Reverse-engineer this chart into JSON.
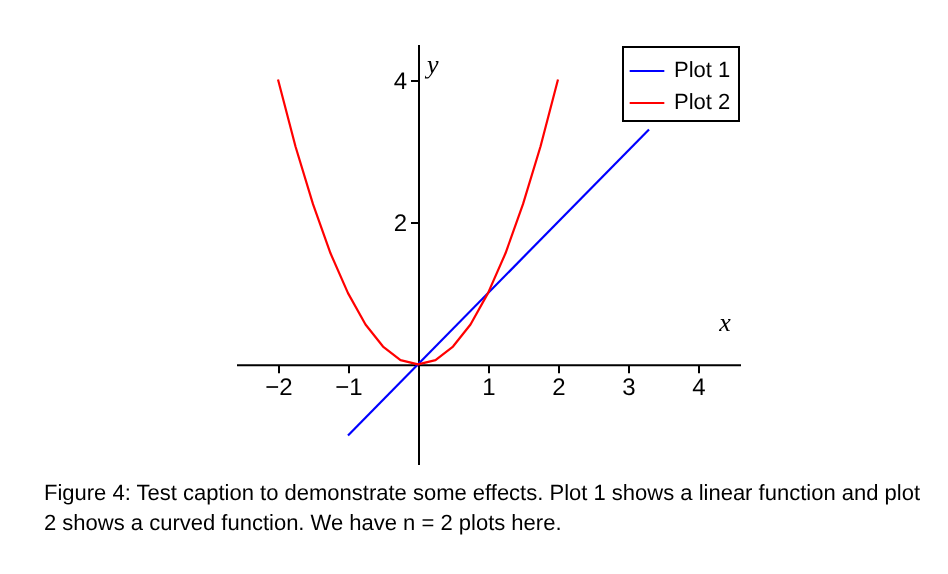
{
  "chart_data": {
    "type": "line",
    "xlabel": "x",
    "ylabel": "y",
    "xlim": [
      -2.6,
      4.6
    ],
    "ylim": [
      -1.4,
      4.5
    ],
    "xticks": [
      -2,
      -1,
      1,
      2,
      3,
      4
    ],
    "yticks": [
      2,
      4
    ],
    "grid": false,
    "legend": "top right",
    "marker": "none",
    "line_style": "solid",
    "series": [
      {
        "name": "Plot 1",
        "color": "#0000ff",
        "x": [
          -1,
          3.3
        ],
        "values": [
          -1,
          3.3
        ]
      },
      {
        "name": "Plot 2",
        "color": "#ff0000",
        "x": [
          -2,
          -1.75,
          -1.5,
          -1.25,
          -1,
          -0.75,
          -0.5,
          -0.25,
          0,
          0.25,
          0.5,
          0.75,
          1,
          1.25,
          1.5,
          1.75,
          2
        ],
        "values": [
          4,
          3.06,
          2.25,
          1.56,
          1,
          0.56,
          0.25,
          0.06,
          0,
          0.06,
          0.25,
          0.56,
          1,
          1.56,
          2.25,
          3.06,
          4
        ]
      }
    ],
    "annotations": [
      "Figure 4: Test caption to demonstrate some effects. Plot 1 shows a linear function and plot 2 shows a curved function. We have n = 2 plots here."
    ]
  }
}
